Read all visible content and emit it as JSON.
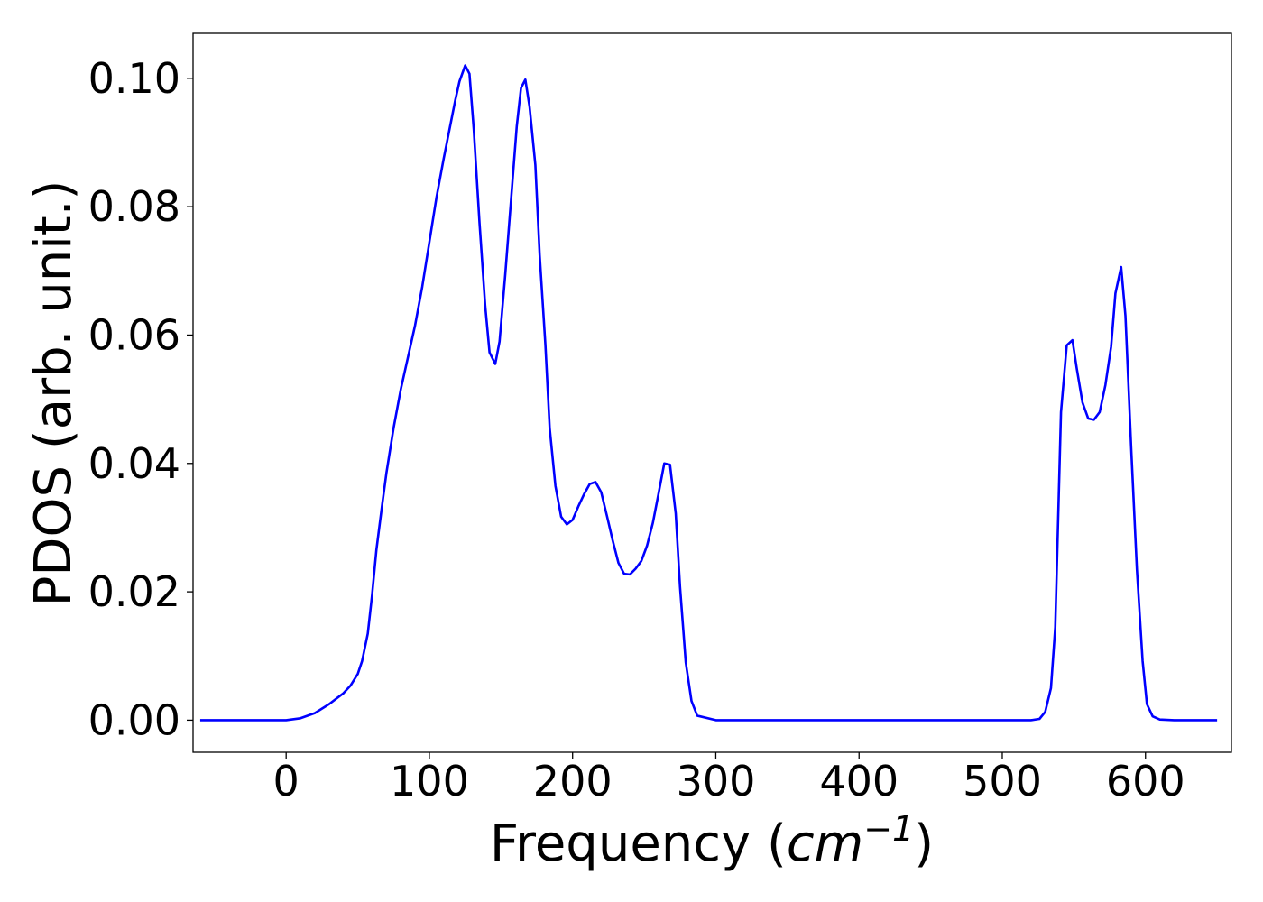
{
  "chart_data": {
    "type": "line",
    "title": "",
    "xlabel": "Frequency (cm⁻¹)",
    "xlabel_parts": {
      "prefix": "Frequency (",
      "unit_base": "cm",
      "unit_exp": "−1",
      "suffix": ")"
    },
    "ylabel": "PDOS (arb. unit.)",
    "xlim": [
      -65,
      660
    ],
    "ylim": [
      -0.005,
      0.107
    ],
    "xticks": [
      0,
      100,
      200,
      300,
      400,
      500,
      600
    ],
    "xtick_labels": [
      "0",
      "100",
      "200",
      "300",
      "400",
      "500",
      "600"
    ],
    "yticks": [
      0.0,
      0.02,
      0.04,
      0.06,
      0.08,
      0.1
    ],
    "ytick_labels": [
      "0.00",
      "0.02",
      "0.04",
      "0.06",
      "0.08",
      "0.10"
    ],
    "grid": false,
    "legend": "none",
    "series": [
      {
        "color": "#0000ff",
        "x": [
          -60,
          -20,
          0,
          10,
          20,
          30,
          40,
          45,
          50,
          53,
          57,
          60,
          63,
          67,
          70,
          75,
          80,
          85,
          90,
          95,
          100,
          105,
          110,
          114,
          118,
          121,
          125,
          128,
          131,
          135,
          139,
          142,
          146,
          149,
          153,
          157,
          161,
          164,
          167,
          170,
          174,
          177,
          181,
          184,
          188,
          192,
          196,
          200,
          204,
          208,
          212,
          216,
          220,
          224,
          228,
          232,
          236,
          240,
          244,
          248,
          252,
          256,
          260,
          264,
          268,
          272,
          275,
          279,
          283,
          287,
          300,
          400,
          500,
          520,
          526,
          530,
          534,
          537,
          541,
          545,
          549,
          552,
          556,
          560,
          564,
          568,
          572,
          576,
          579,
          583,
          586,
          590,
          594,
          598,
          601,
          605,
          610,
          620,
          650
        ],
        "y": [
          0.0,
          0.0,
          0.0,
          0.0003,
          0.0011,
          0.0025,
          0.0042,
          0.0054,
          0.0072,
          0.0092,
          0.0135,
          0.0195,
          0.0265,
          0.0335,
          0.0385,
          0.0455,
          0.0515,
          0.0565,
          0.0615,
          0.0675,
          0.0745,
          0.0815,
          0.0875,
          0.092,
          0.0965,
          0.0995,
          0.102,
          0.1007,
          0.092,
          0.0775,
          0.0645,
          0.0573,
          0.0555,
          0.059,
          0.0695,
          0.081,
          0.0925,
          0.0985,
          0.0998,
          0.0955,
          0.0865,
          0.0725,
          0.0585,
          0.0455,
          0.0365,
          0.0317,
          0.0305,
          0.0312,
          0.0333,
          0.0352,
          0.0368,
          0.0371,
          0.0355,
          0.0318,
          0.028,
          0.0245,
          0.0228,
          0.0227,
          0.0236,
          0.0248,
          0.0272,
          0.0307,
          0.0353,
          0.04,
          0.0398,
          0.0322,
          0.0208,
          0.009,
          0.003,
          0.0007,
          0.0,
          0.0,
          0.0,
          0.0,
          0.0002,
          0.0013,
          0.005,
          0.0145,
          0.048,
          0.0584,
          0.0592,
          0.0548,
          0.0495,
          0.047,
          0.0468,
          0.048,
          0.0522,
          0.0582,
          0.0665,
          0.0706,
          0.063,
          0.0425,
          0.0235,
          0.0092,
          0.0025,
          0.0006,
          0.0001,
          0.0,
          0.0
        ]
      }
    ]
  }
}
